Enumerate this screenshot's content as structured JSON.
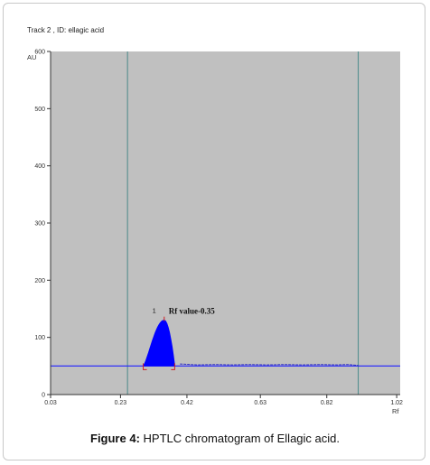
{
  "track_title": "Track  2 , ID: ellagic acid",
  "caption": {
    "label": "Figure 4:",
    "text": " HPTLC chromatogram of Ellagic acid."
  },
  "colors": {
    "plot_background": "#c0c0c0",
    "peak_fill": "#0000ff",
    "baseline": "#2020ff",
    "front_marker": "#4a8a8a",
    "signal": "#3030c0"
  },
  "chart_data": {
    "type": "line",
    "title": "",
    "xlabel": "Rf",
    "ylabel": "AU",
    "xlim": [
      0.03,
      1.03
    ],
    "ylim": [
      0,
      600
    ],
    "x_ticks": [
      "0.03",
      "0.23",
      "0.42",
      "0.63",
      "0.82",
      "1.02"
    ],
    "x_tick_values": [
      0.03,
      0.23,
      0.42,
      0.63,
      0.82,
      1.02
    ],
    "y_ticks": [
      "0",
      "100",
      "200",
      "300",
      "400",
      "500",
      "600"
    ],
    "y_tick_values": [
      0,
      100,
      200,
      300,
      400,
      500,
      600
    ],
    "baseline_value": 50,
    "vertical_markers": [
      0.25,
      0.91
    ],
    "series": [
      {
        "name": "",
        "x": [
          0.25,
          0.3,
          0.33,
          0.35,
          0.37,
          0.4,
          0.45,
          0.5,
          0.55,
          0.6,
          0.65,
          0.7,
          0.75,
          0.8,
          0.85,
          0.88,
          0.91
        ],
        "y": [
          50,
          50,
          90,
          130,
          100,
          52,
          52,
          51,
          52,
          51,
          52,
          51,
          52,
          51,
          52,
          51,
          51
        ]
      }
    ],
    "peak": {
      "label": "1",
      "rf_start": 0.295,
      "rf_apex": 0.355,
      "rf_end": 0.385,
      "apex_value": 130,
      "annotation": "Rf value-0.35"
    }
  }
}
